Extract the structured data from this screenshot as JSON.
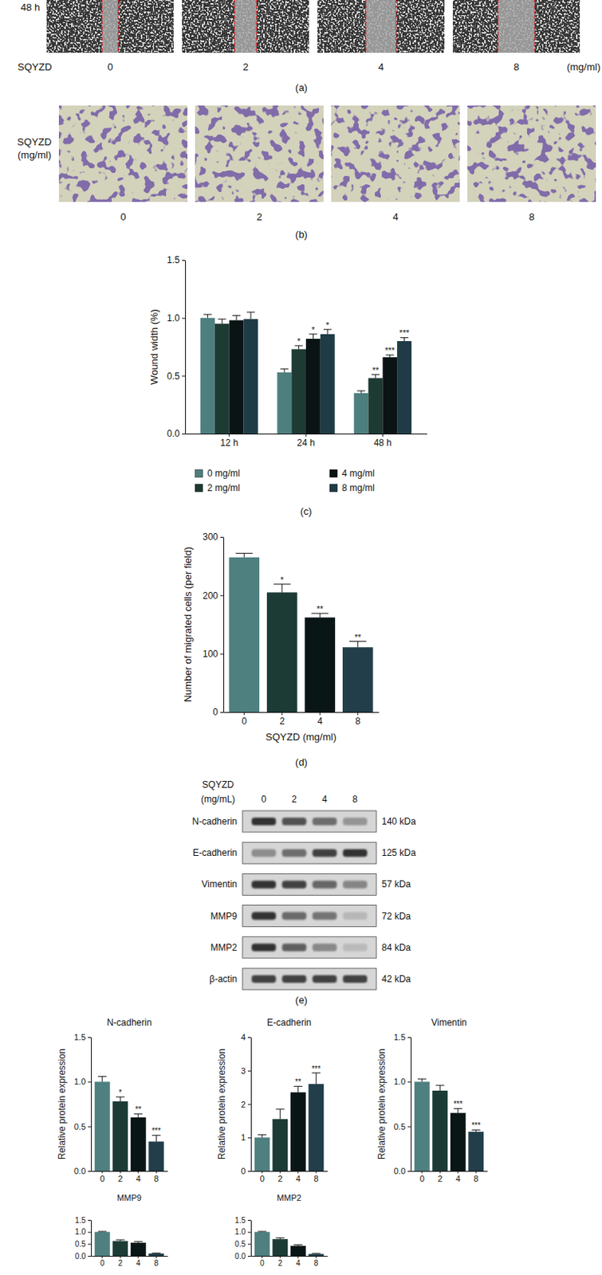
{
  "chart_data": [
    {
      "type": "bar",
      "ylabel": "Wound width (%)",
      "categories": [
        "12 h",
        "24 h",
        "48 h"
      ],
      "series": [
        {
          "name": "0 mg/ml",
          "color": "#4e7f7f",
          "values": [
            1.0,
            0.53,
            0.35
          ],
          "errors": [
            0.03,
            0.03,
            0.02
          ]
        },
        {
          "name": "2 mg/ml",
          "color": "#1d3a33",
          "values": [
            0.95,
            0.73,
            0.48
          ],
          "errors": [
            0.04,
            0.03,
            0.03
          ]
        },
        {
          "name": "4 mg/ml",
          "color": "#0a1414",
          "values": [
            0.98,
            0.82,
            0.66
          ],
          "errors": [
            0.04,
            0.04,
            0.02
          ]
        },
        {
          "name": "8 mg/ml",
          "color": "#1f3b46",
          "values": [
            0.99,
            0.86,
            0.8
          ],
          "errors": [
            0.06,
            0.04,
            0.03
          ]
        }
      ],
      "ylim": [
        0,
        1.5
      ],
      "yticks": [
        {
          "value": 0,
          "label": "0.0"
        },
        {
          "value": 0.5,
          "label": "0.5"
        },
        {
          "value": 1,
          "label": "1.0"
        },
        {
          "value": 1.5,
          "label": "1.5"
        }
      ],
      "legend": "bottom",
      "annotations": [
        {
          "series": 1,
          "index": 1,
          "text": "*"
        },
        {
          "series": 2,
          "index": 1,
          "text": "*"
        },
        {
          "series": 3,
          "index": 1,
          "text": "*"
        },
        {
          "series": 1,
          "index": 2,
          "text": "**"
        },
        {
          "series": 2,
          "index": 2,
          "text": "***"
        },
        {
          "series": 3,
          "index": 2,
          "text": "***"
        }
      ]
    },
    {
      "type": "bar",
      "xlabel": "SQYZD (mg/ml)",
      "ylabel": "Number of migrated cells (per field)",
      "categories": [
        "0",
        "2",
        "4",
        "8"
      ],
      "values": [
        265,
        205,
        162,
        111
      ],
      "errors": [
        7,
        14,
        7,
        10
      ],
      "colors": [
        "#4e8080",
        "#1c3b34",
        "#0a1515",
        "#213e4a"
      ],
      "ylim": [
        0,
        300
      ],
      "yticks": [
        0,
        100,
        200,
        300
      ],
      "annotations": [
        {
          "index": 1,
          "text": "*"
        },
        {
          "index": 2,
          "text": "**"
        },
        {
          "index": 3,
          "text": "**"
        }
      ]
    },
    {
      "type": "bar",
      "title": "N-cadherin",
      "ylabel": "Relative protein expression",
      "categories": [
        "0",
        "2",
        "4",
        "8"
      ],
      "values": [
        1.0,
        0.78,
        0.6,
        0.33
      ],
      "errors": [
        0.06,
        0.05,
        0.04,
        0.07
      ],
      "colors": [
        "#4e8080",
        "#1c3b34",
        "#0a1515",
        "#213e4a"
      ],
      "ylim": [
        0,
        1.5
      ],
      "yticks": [
        {
          "value": 0,
          "label": "0.0"
        },
        {
          "value": 0.5,
          "label": "0.5"
        },
        {
          "value": 1,
          "label": "1.0"
        },
        {
          "value": 1.5,
          "label": "1.5"
        }
      ],
      "annotations": [
        {
          "index": 1,
          "text": "*"
        },
        {
          "index": 2,
          "text": "**"
        },
        {
          "index": 3,
          "text": "***"
        }
      ]
    },
    {
      "type": "bar",
      "title": "E-cadherin",
      "ylabel": "Relative protein expression",
      "categories": [
        "0",
        "2",
        "4",
        "8"
      ],
      "values": [
        1.0,
        1.55,
        2.35,
        2.6
      ],
      "errors": [
        0.08,
        0.3,
        0.18,
        0.33
      ],
      "colors": [
        "#4e8080",
        "#1c3b34",
        "#0a1515",
        "#213e4a"
      ],
      "ylim": [
        0,
        4
      ],
      "yticks": [
        0,
        1,
        2,
        3,
        4
      ],
      "annotations": [
        {
          "index": 2,
          "text": "**"
        },
        {
          "index": 3,
          "text": "***"
        }
      ]
    },
    {
      "type": "bar",
      "title": "Vimentin",
      "ylabel": "Relative protein expression",
      "categories": [
        "0",
        "2",
        "4",
        "8"
      ],
      "values": [
        1.0,
        0.9,
        0.65,
        0.44
      ],
      "errors": [
        0.03,
        0.06,
        0.05,
        0.02
      ],
      "colors": [
        "#4e8080",
        "#1c3b34",
        "#0a1515",
        "#213e4a"
      ],
      "ylim": [
        0,
        1.5
      ],
      "yticks": [
        {
          "value": 0,
          "label": "0.0"
        },
        {
          "value": 0.5,
          "label": "0.5"
        },
        {
          "value": 1,
          "label": "1.0"
        },
        {
          "value": 1.5,
          "label": "1.5"
        }
      ],
      "annotations": [
        {
          "index": 2,
          "text": "***"
        },
        {
          "index": 3,
          "text": "***"
        }
      ]
    },
    {
      "type": "bar",
      "title": "MMP9",
      "categories": [
        "0",
        "2",
        "4",
        "8"
      ],
      "values": [
        1.0,
        0.62,
        0.55,
        0.1
      ],
      "errors": [
        0.02,
        0.05,
        0.05,
        0.02
      ],
      "colors": [
        "#4e8080",
        "#1c3b34",
        "#0a1515",
        "#213e4a"
      ],
      "ylim": [
        0,
        1.5
      ],
      "yticks": [
        {
          "value": 0,
          "label": "0.0"
        },
        {
          "value": 0.5,
          "label": "0.5"
        },
        {
          "value": 1,
          "label": "1.0"
        },
        {
          "value": 1.5,
          "label": "1.5"
        }
      ]
    },
    {
      "type": "bar",
      "title": "MMP2",
      "categories": [
        "0",
        "2",
        "4",
        "8"
      ],
      "values": [
        1.0,
        0.7,
        0.42,
        0.08
      ],
      "errors": [
        0.02,
        0.05,
        0.04,
        0.02
      ],
      "colors": [
        "#4e8080",
        "#1c3b34",
        "#0a1515",
        "#213e4a"
      ],
      "ylim": [
        0,
        1.5
      ],
      "yticks": [
        {
          "value": 0,
          "label": "0.0"
        },
        {
          "value": 0.5,
          "label": "0.5"
        },
        {
          "value": 1,
          "label": "1.0"
        },
        {
          "value": 1.5,
          "label": "1.5"
        }
      ]
    }
  ],
  "figure": {
    "panel_a": {
      "time_label": "48 h",
      "row_label": "SQYZD",
      "doses": [
        "0",
        "2",
        "4",
        "8"
      ],
      "unit": "(mg/ml)",
      "caption": "(a)"
    },
    "panel_b": {
      "row_label": [
        "SQYZD",
        "(mg/ml)"
      ],
      "doses": [
        "0",
        "2",
        "4",
        "8"
      ],
      "caption": "(b)"
    },
    "panel_c": {
      "caption": "(c)"
    },
    "panel_d": {
      "caption": "(d)"
    },
    "panel_e": {
      "header": [
        "SQYZD",
        "(mg/mL)"
      ],
      "lanes": [
        "0",
        "2",
        "4",
        "8"
      ],
      "rows": [
        {
          "protein": "N-cadherin",
          "size": "140 kDa"
        },
        {
          "protein": "E-cadherin",
          "size": "125 kDa"
        },
        {
          "protein": "Vimentin",
          "size": "57 kDa"
        },
        {
          "protein": "MMP9",
          "size": "72 kDa"
        },
        {
          "protein": "MMP2",
          "size": "84 kDa"
        },
        {
          "protein": "β-actin",
          "size": "42 kDa"
        }
      ],
      "caption": "(e)"
    }
  }
}
